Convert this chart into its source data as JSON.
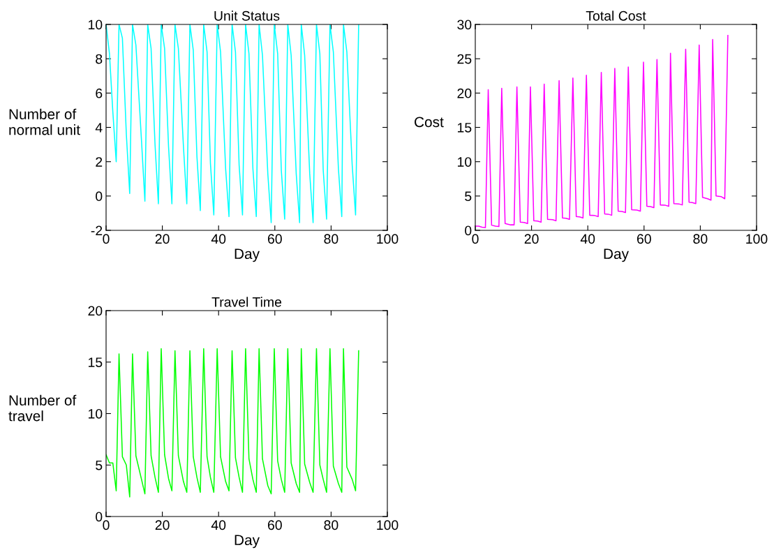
{
  "chart_data": [
    {
      "type": "line",
      "title": "Unit Status",
      "xlabel": "Day",
      "ylabel": "Number of\nnormal unit",
      "x": [
        0,
        1.2,
        2.4,
        3.6,
        4.6,
        5.8,
        7.2,
        8.4,
        9.4,
        10.6,
        12.6,
        13.8,
        14.8,
        16.0,
        17.4,
        18.6,
        19.6,
        20.8,
        22.2,
        23.4,
        24.5,
        25.7,
        27.5,
        28.7,
        29.8,
        31.0,
        32.3,
        33.5,
        34.7,
        35.9,
        37.1,
        38.3,
        39.5,
        40.7,
        42.5,
        43.7,
        44.8,
        46.0,
        47.3,
        48.5,
        49.6,
        50.8,
        52.2,
        53.4,
        54.4,
        55.6,
        57.5,
        58.7,
        59.8,
        61.0,
        62.3,
        63.5,
        64.6,
        65.8,
        67.6,
        68.8,
        69.4,
        70.6,
        72.4,
        73.6,
        74.8,
        76.0,
        77.2,
        78.4,
        79.6,
        80.8,
        82.6,
        83.8,
        84.4,
        85.6,
        87.5,
        88.7,
        89.8
      ],
      "series": [
        {
          "color": "#00ffff",
          "values": [
            10,
            8.3,
            4.9,
            2.0,
            10,
            9.2,
            3.6,
            0.15,
            10,
            8.8,
            3.2,
            -0.3,
            10,
            8.6,
            3.0,
            -0.45,
            10,
            8.6,
            2.9,
            -0.45,
            10,
            8.6,
            2.9,
            -0.45,
            10,
            8.5,
            2.3,
            -0.85,
            10,
            8.4,
            1.9,
            -1.1,
            10,
            8.4,
            1.6,
            -1.2,
            10,
            8.4,
            1.8,
            -1.1,
            10,
            8.3,
            1.6,
            -1.2,
            10,
            8.2,
            1.3,
            -1.55,
            10,
            8.3,
            1.5,
            -1.35,
            10,
            8.2,
            1.3,
            -1.55,
            10,
            8.2,
            1.3,
            -1.55,
            10,
            8.3,
            1.5,
            -1.35,
            10,
            8.4,
            1.6,
            -1.2,
            10,
            8.4,
            1.8,
            -1.1,
            10
          ]
        }
      ],
      "xlim": [
        0,
        100
      ],
      "ylim": [
        -2,
        10
      ],
      "xticks": [
        0,
        20,
        40,
        60,
        80,
        100
      ],
      "yticks": [
        -2,
        0,
        2,
        4,
        6,
        8,
        10
      ]
    },
    {
      "type": "line",
      "title": "Total Cost",
      "xlabel": "Day",
      "ylabel": "Cost",
      "x": [
        0,
        1.2,
        2.4,
        3.6,
        4.6,
        5.8,
        7.2,
        8.4,
        9.4,
        10.6,
        12.6,
        13.8,
        14.8,
        16.0,
        17.4,
        18.6,
        19.6,
        20.8,
        22.2,
        23.4,
        24.5,
        25.7,
        27.5,
        28.7,
        29.8,
        31.0,
        32.3,
        33.5,
        34.7,
        35.9,
        37.1,
        38.3,
        39.5,
        40.7,
        42.5,
        43.7,
        44.8,
        46.0,
        47.3,
        48.5,
        49.6,
        50.8,
        52.2,
        53.4,
        54.4,
        55.6,
        57.5,
        58.7,
        59.8,
        61.0,
        62.3,
        63.5,
        64.6,
        65.8,
        67.6,
        68.8,
        69.4,
        70.6,
        72.4,
        73.6,
        74.8,
        76.0,
        77.2,
        78.4,
        79.6,
        80.8,
        82.6,
        83.8,
        84.4,
        85.6,
        87.5,
        88.7,
        89.8
      ],
      "series": [
        {
          "color": "#ff00ff",
          "values": [
            0.6,
            0.6,
            0.45,
            0.4,
            20.5,
            0.75,
            0.6,
            0.55,
            20.7,
            1.0,
            0.8,
            0.8,
            20.9,
            1.2,
            1.15,
            1.0,
            20.9,
            1.4,
            1.35,
            1.2,
            21.3,
            1.6,
            1.55,
            1.4,
            21.8,
            1.8,
            1.75,
            1.6,
            22.2,
            2.0,
            1.95,
            1.8,
            22.6,
            2.2,
            2.15,
            2.0,
            23.0,
            2.4,
            2.35,
            2.2,
            23.6,
            2.8,
            2.75,
            2.6,
            23.8,
            3.0,
            2.95,
            2.8,
            24.5,
            3.5,
            3.45,
            3.3,
            24.9,
            3.7,
            3.65,
            3.5,
            25.8,
            3.9,
            3.85,
            3.7,
            26.4,
            4.1,
            4.05,
            3.9,
            27.0,
            4.8,
            4.6,
            4.4,
            27.8,
            5.0,
            4.9,
            4.6,
            28.4
          ]
        }
      ],
      "xlim": [
        0,
        100
      ],
      "ylim": [
        0,
        30
      ],
      "xticks": [
        0,
        20,
        40,
        60,
        80,
        100
      ],
      "yticks": [
        0,
        5,
        10,
        15,
        20,
        25,
        30
      ]
    },
    {
      "type": "line",
      "title": "Travel Time",
      "xlabel": "Day",
      "ylabel": "Number of\ntravel",
      "x": [
        0,
        1.2,
        2.4,
        3.6,
        4.6,
        5.8,
        7.2,
        8.4,
        9.4,
        10.6,
        12.6,
        13.8,
        14.8,
        16.0,
        17.4,
        18.6,
        19.6,
        20.8,
        22.2,
        23.4,
        24.5,
        25.7,
        27.5,
        28.7,
        29.8,
        31.0,
        32.3,
        33.5,
        34.7,
        35.9,
        37.1,
        38.3,
        39.5,
        40.7,
        42.5,
        43.7,
        44.8,
        46.0,
        47.3,
        48.5,
        49.6,
        50.8,
        52.2,
        53.4,
        54.4,
        55.6,
        57.5,
        58.7,
        59.8,
        61.0,
        62.3,
        63.5,
        64.6,
        65.8,
        67.6,
        68.8,
        69.4,
        70.6,
        72.4,
        73.6,
        74.8,
        76.0,
        77.2,
        78.4,
        79.6,
        80.8,
        82.6,
        83.8,
        84.4,
        85.6,
        87.5,
        88.7,
        89.8
      ],
      "series": [
        {
          "color": "#00ff00",
          "values": [
            6.0,
            5.2,
            5.2,
            2.5,
            15.8,
            5.8,
            5.0,
            1.9,
            15.8,
            5.9,
            3.6,
            2.2,
            16.0,
            5.9,
            3.8,
            2.35,
            16.3,
            6.0,
            3.7,
            2.5,
            16.1,
            5.9,
            3.4,
            2.35,
            16.1,
            5.8,
            3.8,
            2.35,
            16.3,
            5.8,
            3.8,
            2.35,
            16.3,
            5.8,
            3.4,
            2.5,
            16.1,
            5.7,
            3.8,
            2.35,
            16.3,
            5.6,
            3.6,
            2.35,
            16.3,
            5.6,
            3.0,
            2.2,
            16.3,
            5.4,
            3.6,
            2.35,
            16.3,
            5.2,
            3.2,
            2.35,
            16.3,
            5.1,
            3.3,
            2.35,
            16.3,
            5.0,
            3.6,
            2.35,
            16.3,
            4.9,
            3.2,
            2.35,
            16.3,
            4.8,
            3.6,
            2.5,
            16.1
          ]
        }
      ],
      "xlim": [
        0,
        100
      ],
      "ylim": [
        0,
        20
      ],
      "xticks": [
        0,
        20,
        40,
        60,
        80,
        100
      ],
      "yticks": [
        0,
        5,
        10,
        15,
        20
      ]
    }
  ]
}
